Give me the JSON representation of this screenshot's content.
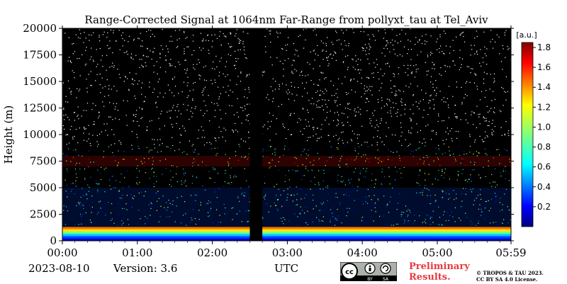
{
  "chart_data": {
    "type": "heatmap",
    "title": "Range-Corrected Signal at 1064nm Far-Range from pollyxt_tau at Tel_Aviv",
    "ylabel": "Height (m)",
    "xlabel": "UTC",
    "ylim": [
      0,
      20000
    ],
    "xlim": [
      "00:00",
      "05:59"
    ],
    "x_ticks": [
      "00:00",
      "01:00",
      "02:00",
      "03:00",
      "04:00",
      "05:00",
      "05:59"
    ],
    "y_ticks": [
      0,
      2500,
      5000,
      7500,
      10000,
      12500,
      15000,
      17500,
      20000
    ],
    "colorbar": {
      "label": "[a.u.]",
      "range": [
        0,
        1.85
      ],
      "ticks": [
        0.2,
        0.4,
        0.6,
        0.8,
        1.0,
        1.2,
        1.4,
        1.6,
        1.8
      ],
      "colormap": "jet"
    },
    "no_data_gap": [
      "02:30",
      "02:40"
    ],
    "layers": [
      {
        "height_range": [
          0,
          1300
        ],
        "signal": 1.2
      },
      {
        "height_range": [
          1300,
          5000
        ],
        "signal": 0.35
      },
      {
        "height_range": [
          7000,
          8000
        ],
        "signal": 1.6
      }
    ]
  },
  "footer": {
    "date": "2023-08-10",
    "version": "Version: 3.6",
    "preliminary_line1": "Preliminary",
    "preliminary_line2": "Results.",
    "copyright_line1": "© TROPOS & TAU 2023.",
    "copyright_line2": "CC BY SA 4.0 License."
  },
  "cc_badge": {
    "icon": "cc-by-sa-icon",
    "by": "BY",
    "sa": "SA"
  }
}
